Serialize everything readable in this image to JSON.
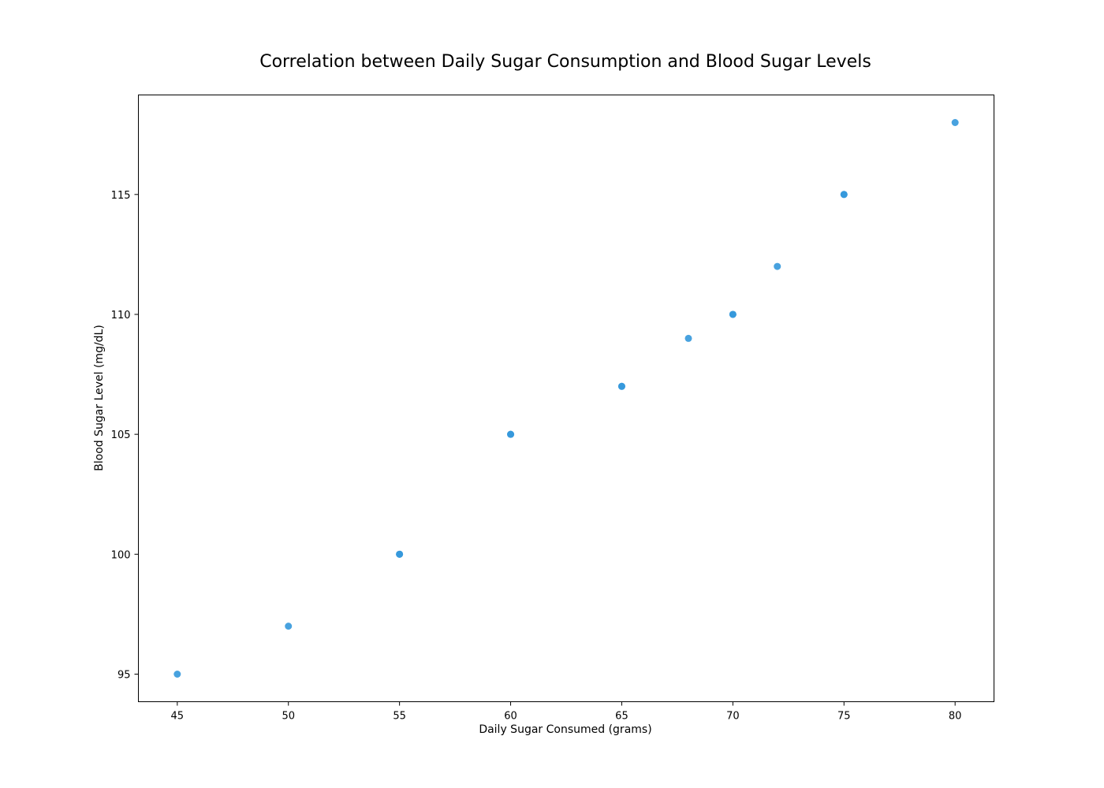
{
  "chart_data": {
    "type": "scatter",
    "title": "Correlation between Daily Sugar Consumption and Blood Sugar Levels",
    "xlabel": "Daily Sugar Consumed (grams)",
    "ylabel": "Blood Sugar Level (mg/dL)",
    "xlim": [
      43.25,
      81.75
    ],
    "ylim": [
      93.85,
      119.15
    ],
    "xticks": [
      45,
      50,
      55,
      60,
      65,
      70,
      75,
      80
    ],
    "yticks": [
      95,
      100,
      105,
      110,
      115
    ],
    "grid": false,
    "marker_color": "#3498db",
    "points": [
      {
        "x": 45,
        "y": 95
      },
      {
        "x": 50,
        "y": 97
      },
      {
        "x": 55,
        "y": 100
      },
      {
        "x": 55,
        "y": 100
      },
      {
        "x": 60,
        "y": 105
      },
      {
        "x": 60,
        "y": 105
      },
      {
        "x": 65,
        "y": 107
      },
      {
        "x": 65,
        "y": 107
      },
      {
        "x": 68,
        "y": 109
      },
      {
        "x": 70,
        "y": 110
      },
      {
        "x": 70,
        "y": 110
      },
      {
        "x": 72,
        "y": 112
      },
      {
        "x": 75,
        "y": 115
      },
      {
        "x": 75,
        "y": 115
      },
      {
        "x": 80,
        "y": 118
      }
    ]
  }
}
